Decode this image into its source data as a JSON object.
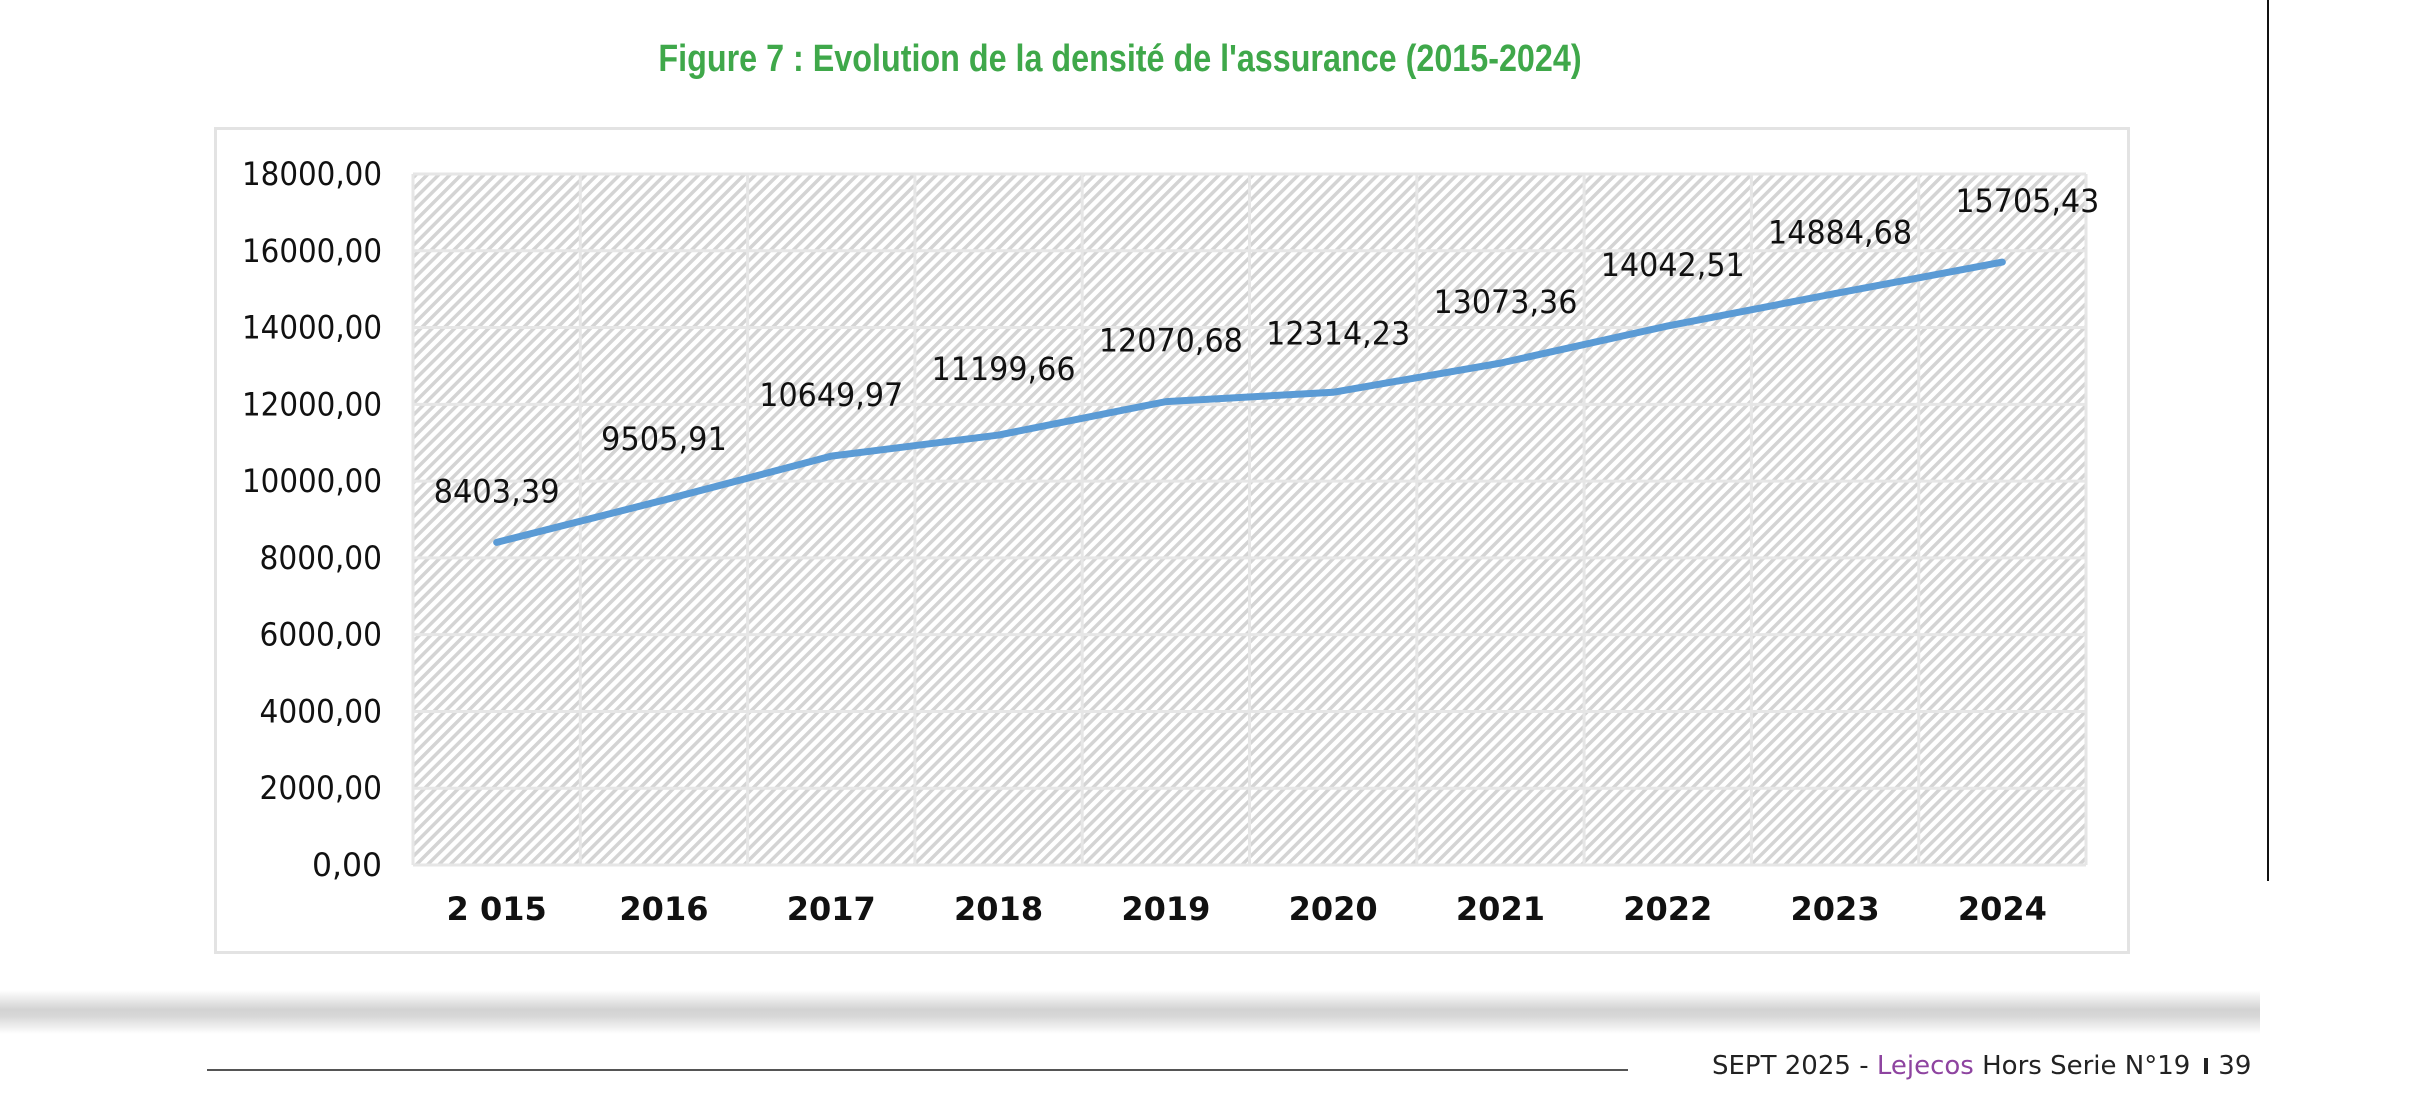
{
  "chart_data": {
    "type": "line",
    "title": "Figure 7 : Evolution de la densité de l'assurance (2015-2024)",
    "categories": [
      "2 015",
      "2016",
      "2017",
      "2018",
      "2019",
      "2020",
      "2021",
      "2022",
      "2023",
      "2024"
    ],
    "values": [
      8403.39,
      9505.91,
      10649.97,
      11199.66,
      12070.68,
      12314.23,
      13073.36,
      14042.51,
      14884.68,
      15705.43
    ],
    "data_labels": [
      "8403,39",
      "9505,91",
      "10649,97",
      "11199,66",
      "12070,68",
      "12314,23",
      "13073,36",
      "14042,51",
      "14884,68",
      "15705,43"
    ],
    "y_ticks": [
      "0,00",
      "2000,00",
      "4000,00",
      "6000,00",
      "8000,00",
      "10000,00",
      "12000,00",
      "14000,00",
      "16000,00",
      "18000,00"
    ],
    "ylim": [
      0,
      18000
    ],
    "grid": true,
    "legend": "none",
    "line_color": "#5b9bd5"
  },
  "footer": {
    "date": "SEPT 2025 - ",
    "brand": "Lejecos",
    "issue": " Hors Serie N°19",
    "page": "39",
    "brand_color": "#8e44a0"
  }
}
